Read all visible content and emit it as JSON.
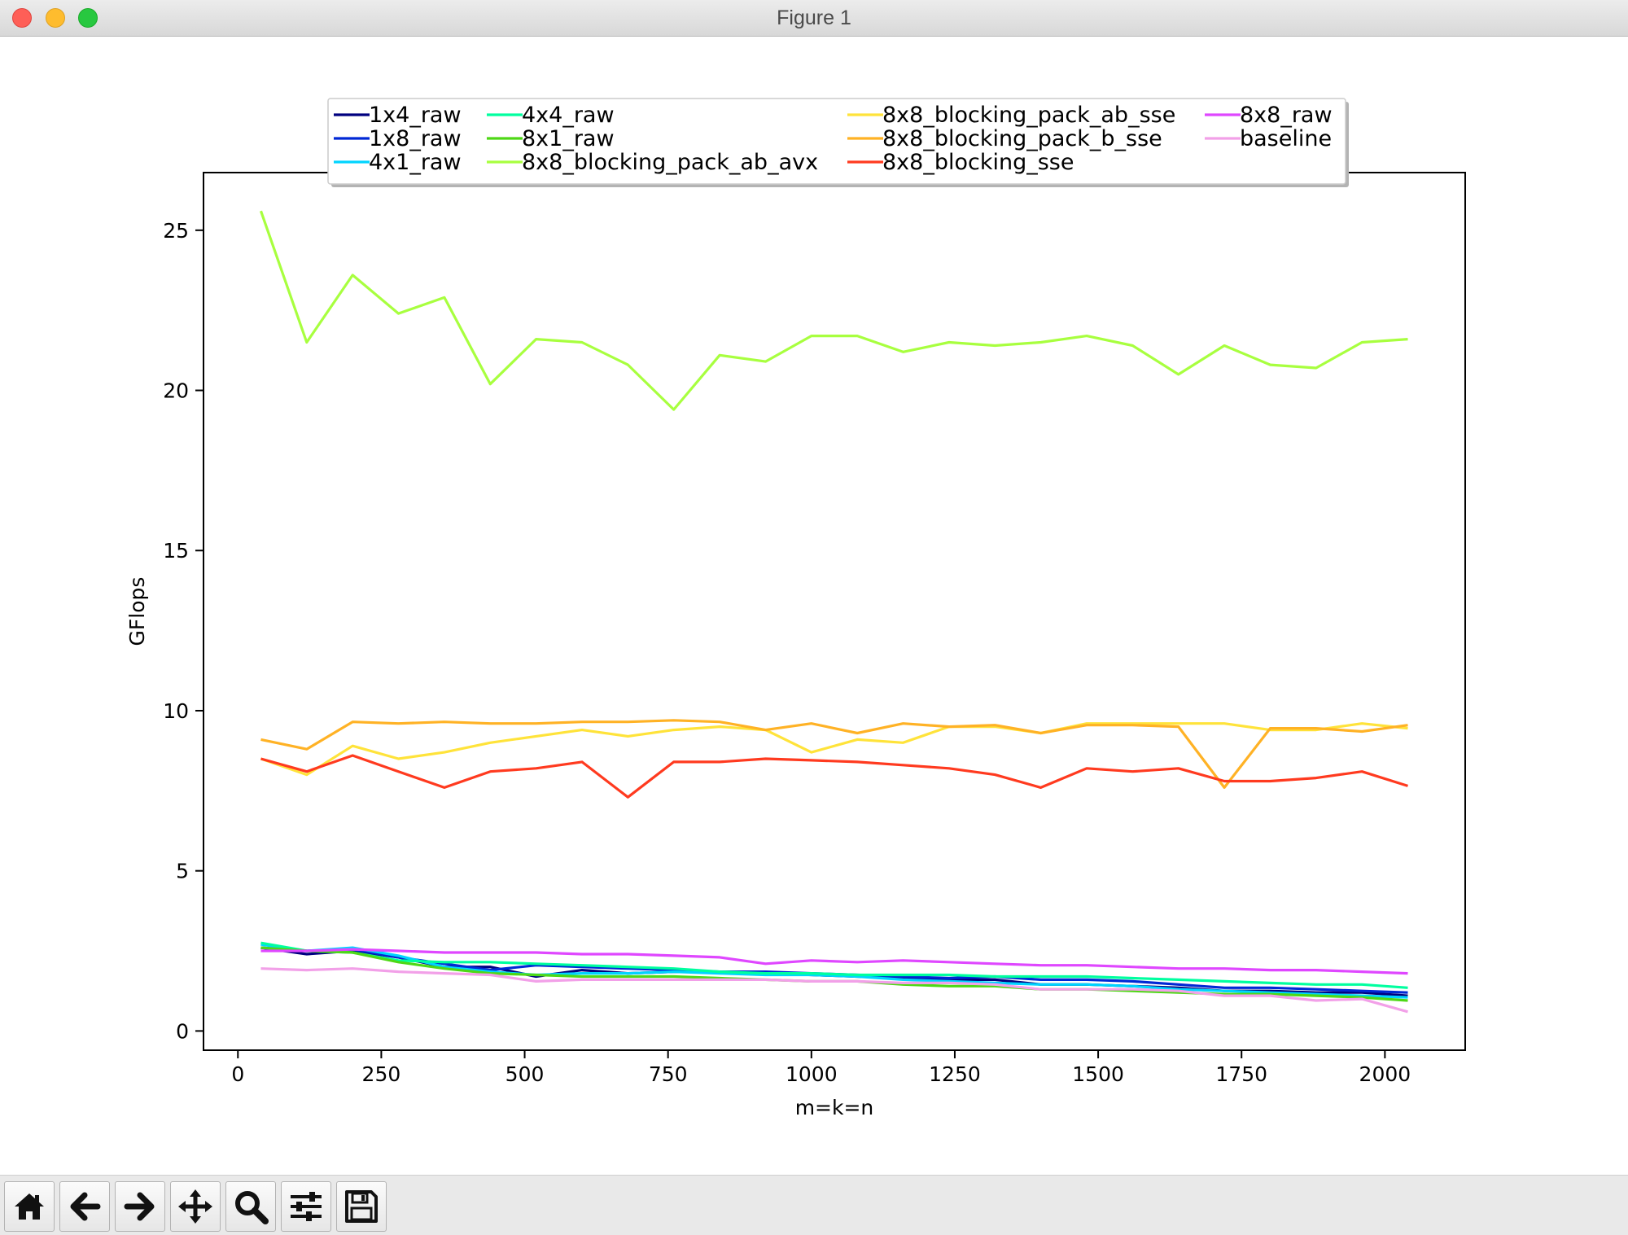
{
  "window": {
    "title": "Figure 1"
  },
  "toolbar": {
    "buttons": [
      {
        "name": "home-button",
        "icon": "home-icon"
      },
      {
        "name": "back-button",
        "icon": "arrow-left-icon"
      },
      {
        "name": "forward-button",
        "icon": "arrow-right-icon"
      },
      {
        "name": "pan-button",
        "icon": "move-icon"
      },
      {
        "name": "zoom-button",
        "icon": "magnifier-icon"
      },
      {
        "name": "configure-subplots-button",
        "icon": "sliders-icon"
      },
      {
        "name": "save-button",
        "icon": "floppy-disk-icon"
      }
    ]
  },
  "chart_data": {
    "type": "line",
    "title": "",
    "xlabel": "m=k=n",
    "ylabel": "GFlops",
    "xlim": [
      -60,
      2140
    ],
    "ylim": [
      -0.6,
      26.8
    ],
    "xticks": [
      0,
      250,
      500,
      750,
      1000,
      1250,
      1500,
      1750,
      2000
    ],
    "yticks": [
      0,
      5,
      10,
      15,
      20,
      25
    ],
    "grid": false,
    "legend_position": "upper-center",
    "legend_columns": 4,
    "x": [
      40,
      120,
      200,
      280,
      360,
      440,
      520,
      600,
      680,
      760,
      840,
      920,
      1000,
      1080,
      1160,
      1240,
      1320,
      1400,
      1480,
      1560,
      1640,
      1720,
      1800,
      1880,
      1960,
      2040
    ],
    "series": [
      {
        "name": "1x4_raw",
        "color": "#00007f",
        "values": [
          2.6,
          2.4,
          2.5,
          2.3,
          2.0,
          2.0,
          1.7,
          1.9,
          1.8,
          1.85,
          1.85,
          1.8,
          1.75,
          1.7,
          1.65,
          1.6,
          1.6,
          1.45,
          1.45,
          1.4,
          1.35,
          1.25,
          1.25,
          1.2,
          1.2,
          1.1
        ]
      },
      {
        "name": "1x8_raw",
        "color": "#0028d5",
        "values": [
          2.6,
          2.5,
          2.55,
          2.3,
          2.1,
          1.9,
          2.05,
          2.0,
          1.95,
          1.9,
          1.85,
          1.85,
          1.8,
          1.75,
          1.7,
          1.65,
          1.7,
          1.6,
          1.6,
          1.55,
          1.45,
          1.35,
          1.35,
          1.3,
          1.25,
          1.2
        ]
      },
      {
        "name": "4x1_raw",
        "color": "#00d4ff",
        "values": [
          2.7,
          2.5,
          2.6,
          2.35,
          2.0,
          1.85,
          1.75,
          1.8,
          1.8,
          1.85,
          1.8,
          1.75,
          1.75,
          1.7,
          1.6,
          1.55,
          1.5,
          1.45,
          1.45,
          1.4,
          1.3,
          1.25,
          1.2,
          1.15,
          1.1,
          1.05
        ]
      },
      {
        "name": "4x4_raw",
        "color": "#00ff9f",
        "values": [
          2.75,
          2.5,
          2.45,
          2.2,
          2.15,
          2.15,
          2.1,
          2.05,
          2.0,
          1.95,
          1.85,
          1.8,
          1.8,
          1.75,
          1.75,
          1.75,
          1.7,
          1.7,
          1.7,
          1.65,
          1.6,
          1.55,
          1.5,
          1.45,
          1.45,
          1.35
        ]
      },
      {
        "name": "8x1_raw",
        "color": "#4ed816",
        "values": [
          2.6,
          2.5,
          2.45,
          2.15,
          1.95,
          1.8,
          1.75,
          1.7,
          1.7,
          1.7,
          1.65,
          1.6,
          1.55,
          1.55,
          1.45,
          1.4,
          1.4,
          1.3,
          1.3,
          1.25,
          1.2,
          1.15,
          1.15,
          1.1,
          1.05,
          0.95
        ]
      },
      {
        "name": "8x8_blocking_pack_ab_avx",
        "color": "#a8ff3f",
        "values": [
          25.6,
          21.5,
          23.6,
          22.4,
          22.9,
          20.2,
          21.6,
          21.5,
          20.8,
          19.4,
          21.1,
          20.9,
          21.7,
          21.7,
          21.2,
          21.5,
          21.4,
          21.5,
          21.7,
          21.4,
          20.5,
          21.4,
          20.8,
          20.7,
          21.5,
          21.6
        ]
      },
      {
        "name": "8x8_blocking_pack_ab_sse",
        "color": "#ffe33a",
        "values": [
          8.5,
          8.0,
          8.9,
          8.5,
          8.7,
          9.0,
          9.2,
          9.4,
          9.2,
          9.4,
          9.5,
          9.4,
          8.7,
          9.1,
          9.0,
          9.5,
          9.5,
          9.3,
          9.6,
          9.6,
          9.6,
          9.6,
          9.4,
          9.4,
          9.6,
          9.45
        ]
      },
      {
        "name": "8x8_blocking_pack_b_sse",
        "color": "#ffb225",
        "values": [
          9.1,
          8.8,
          9.65,
          9.6,
          9.65,
          9.6,
          9.6,
          9.65,
          9.65,
          9.7,
          9.65,
          9.4,
          9.6,
          9.3,
          9.6,
          9.5,
          9.55,
          9.3,
          9.55,
          9.55,
          9.5,
          7.6,
          9.45,
          9.45,
          9.35,
          9.55
        ]
      },
      {
        "name": "8x8_blocking_sse",
        "color": "#ff3a1f",
        "values": [
          8.5,
          8.1,
          8.6,
          8.1,
          7.6,
          8.1,
          8.2,
          8.4,
          7.3,
          8.4,
          8.4,
          8.5,
          8.45,
          8.4,
          8.3,
          8.2,
          8.0,
          7.6,
          8.2,
          8.1,
          8.2,
          7.8,
          7.8,
          7.9,
          8.1,
          7.65
        ]
      },
      {
        "name": "8x8_raw",
        "color": "#df47ff",
        "values": [
          2.5,
          2.5,
          2.55,
          2.5,
          2.45,
          2.45,
          2.45,
          2.4,
          2.4,
          2.35,
          2.3,
          2.1,
          2.2,
          2.15,
          2.2,
          2.15,
          2.1,
          2.05,
          2.05,
          2.0,
          1.95,
          1.95,
          1.9,
          1.9,
          1.85,
          1.8
        ]
      },
      {
        "name": "baseline",
        "color": "#f2a0e8",
        "values": [
          1.95,
          1.9,
          1.95,
          1.85,
          1.8,
          1.75,
          1.55,
          1.6,
          1.6,
          1.6,
          1.6,
          1.6,
          1.55,
          1.55,
          1.5,
          1.5,
          1.45,
          1.3,
          1.3,
          1.3,
          1.25,
          1.1,
          1.1,
          0.95,
          1.0,
          0.6
        ]
      }
    ]
  }
}
